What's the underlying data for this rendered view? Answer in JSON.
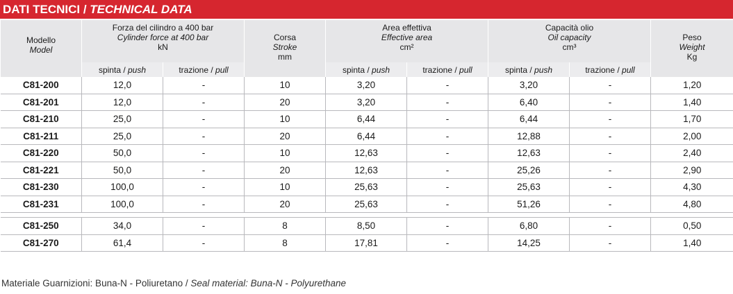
{
  "title": {
    "it": "DATI TECNICI / ",
    "en": "TECHNICAL DATA"
  },
  "header": {
    "model": {
      "it": "Modello",
      "en": "Model"
    },
    "force": {
      "it": "Forza del cilindro a 400 bar",
      "en": "Cylinder force at 400 bar",
      "unit": "kN"
    },
    "stroke": {
      "it": "Corsa",
      "en": "Stroke",
      "unit": "mm"
    },
    "area": {
      "it": "Area effettiva",
      "en": "Effective area",
      "unit": "cm²"
    },
    "oil": {
      "it": "Capacità olio",
      "en": "Oil capacity",
      "unit": "cm³"
    },
    "weight": {
      "it": "Peso",
      "en": "Weight",
      "unit": "Kg"
    },
    "push": {
      "it": "spinta / ",
      "en": "push"
    },
    "pull": {
      "it": "trazione / ",
      "en": "pull"
    }
  },
  "rows_group1": [
    [
      "C81-200",
      "12,0",
      "-",
      "10",
      "3,20",
      "-",
      "3,20",
      "-",
      "1,20"
    ],
    [
      "C81-201",
      "12,0",
      "-",
      "20",
      "3,20",
      "-",
      "6,40",
      "-",
      "1,40"
    ],
    [
      "C81-210",
      "25,0",
      "-",
      "10",
      "6,44",
      "-",
      "6,44",
      "-",
      "1,70"
    ],
    [
      "C81-211",
      "25,0",
      "-",
      "20",
      "6,44",
      "-",
      "12,88",
      "-",
      "2,00"
    ],
    [
      "C81-220",
      "50,0",
      "-",
      "10",
      "12,63",
      "-",
      "12,63",
      "-",
      "2,40"
    ],
    [
      "C81-221",
      "50,0",
      "-",
      "20",
      "12,63",
      "-",
      "25,26",
      "-",
      "2,90"
    ],
    [
      "C81-230",
      "100,0",
      "-",
      "10",
      "25,63",
      "-",
      "25,63",
      "-",
      "4,30"
    ],
    [
      "C81-231",
      "100,0",
      "-",
      "20",
      "25,63",
      "-",
      "51,26",
      "-",
      "4,80"
    ]
  ],
  "rows_group2": [
    [
      "C81-250",
      "34,0",
      "-",
      "8",
      "8,50",
      "-",
      "6,80",
      "-",
      "0,50"
    ],
    [
      "C81-270",
      "61,4",
      "-",
      "8",
      "17,81",
      "-",
      "14,25",
      "-",
      "1,40"
    ]
  ],
  "footnote": {
    "it": "Materiale Guarnizioni: Buna-N - Poliuretano / ",
    "en": "Seal material: Buna-N - Polyurethane"
  },
  "colors": {
    "title_bg": "#d6262f",
    "header_bg": "#e6e6e8",
    "rule": "#b8b8bc"
  }
}
